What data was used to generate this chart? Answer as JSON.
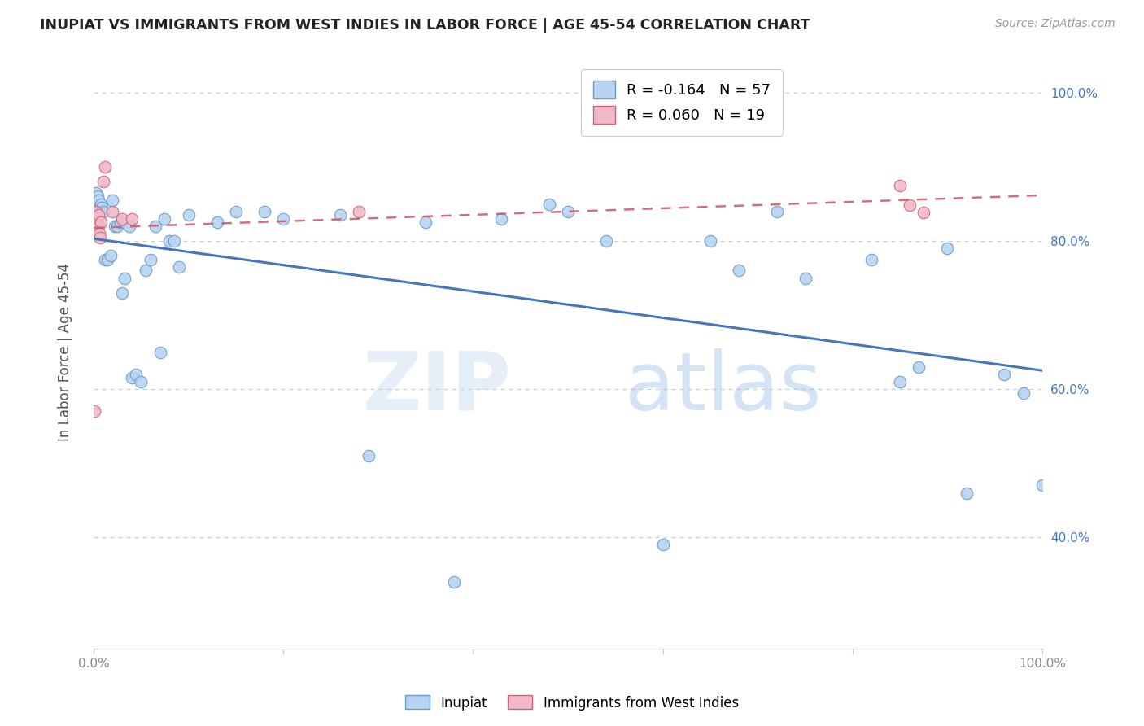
{
  "title": "INUPIAT VS IMMIGRANTS FROM WEST INDIES IN LABOR FORCE | AGE 45-54 CORRELATION CHART",
  "source": "Source: ZipAtlas.com",
  "ylabel": "In Labor Force | Age 45-54",
  "xlim": [
    0,
    1
  ],
  "ylim": [
    0.25,
    1.05
  ],
  "legend_blue_label": "Inupiat",
  "legend_pink_label": "Immigrants from West Indies",
  "blue_R": "-0.164",
  "blue_N": "57",
  "pink_R": "0.060",
  "pink_N": "19",
  "blue_color": "#b8d4f0",
  "pink_color": "#f0b8c8",
  "blue_edge_color": "#6699cc",
  "pink_edge_color": "#cc6677",
  "blue_line_color": "#4477bb",
  "pink_line_color": "#cc5566",
  "watermark_zip": "ZIP",
  "watermark_atlas": "atlas",
  "blue_x": [
    0.002,
    0.003,
    0.004,
    0.005,
    0.005,
    0.006,
    0.007,
    0.008,
    0.009,
    0.01,
    0.012,
    0.015,
    0.018,
    0.02,
    0.022,
    0.025,
    0.028,
    0.03,
    0.033,
    0.038,
    0.04,
    0.045,
    0.05,
    0.055,
    0.06,
    0.065,
    0.07,
    0.075,
    0.08,
    0.085,
    0.09,
    0.1,
    0.13,
    0.15,
    0.18,
    0.2,
    0.26,
    0.29,
    0.35,
    0.38,
    0.43,
    0.48,
    0.5,
    0.54,
    0.6,
    0.65,
    0.68,
    0.72,
    0.75,
    0.82,
    0.85,
    0.87,
    0.9,
    0.92,
    0.96,
    0.98,
    1.0
  ],
  "blue_y": [
    0.855,
    0.865,
    0.86,
    0.84,
    0.855,
    0.845,
    0.84,
    0.85,
    0.845,
    0.84,
    0.775,
    0.775,
    0.78,
    0.855,
    0.82,
    0.82,
    0.825,
    0.73,
    0.75,
    0.82,
    0.615,
    0.62,
    0.61,
    0.76,
    0.775,
    0.82,
    0.65,
    0.83,
    0.8,
    0.8,
    0.765,
    0.835,
    0.825,
    0.84,
    0.84,
    0.83,
    0.835,
    0.51,
    0.825,
    0.34,
    0.83,
    0.85,
    0.84,
    0.8,
    0.39,
    0.8,
    0.76,
    0.84,
    0.75,
    0.775,
    0.61,
    0.63,
    0.79,
    0.46,
    0.62,
    0.595,
    0.47
  ],
  "pink_x": [
    0.001,
    0.002,
    0.003,
    0.003,
    0.004,
    0.005,
    0.005,
    0.006,
    0.007,
    0.008,
    0.01,
    0.012,
    0.02,
    0.03,
    0.04,
    0.28,
    0.85,
    0.86,
    0.875
  ],
  "pink_y": [
    0.57,
    0.84,
    0.82,
    0.84,
    0.825,
    0.835,
    0.82,
    0.81,
    0.805,
    0.825,
    0.88,
    0.9,
    0.84,
    0.83,
    0.83,
    0.84,
    0.875,
    0.848,
    0.838
  ]
}
